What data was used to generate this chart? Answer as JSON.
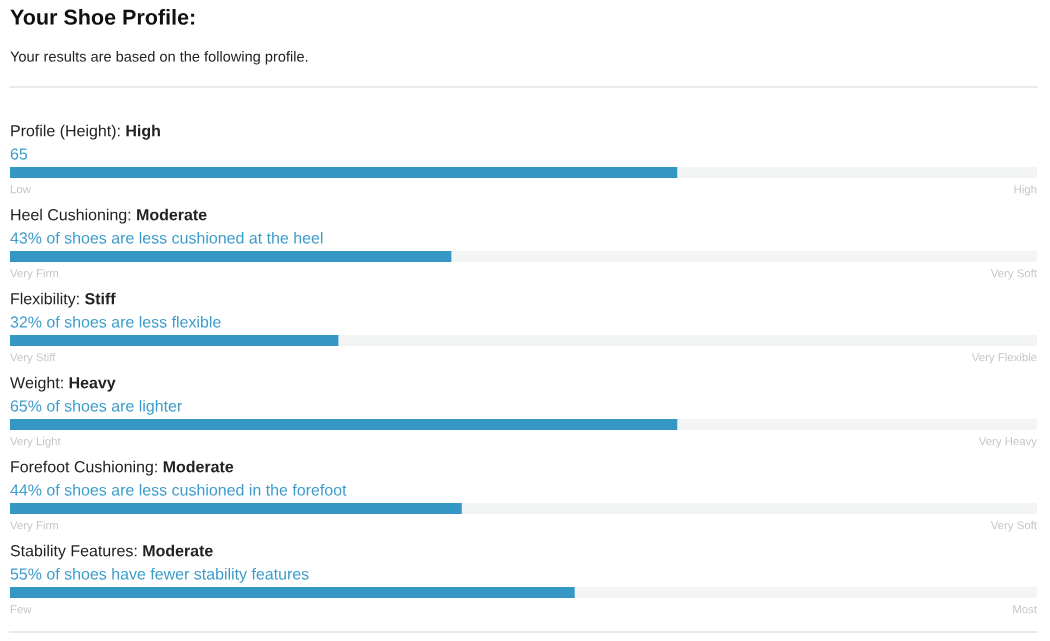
{
  "chart_data": {
    "type": "bar",
    "orientation": "horizontal",
    "stacked": true,
    "title": "Your Shoe Profile:",
    "subtitle": "Your results are based on the following profile.",
    "categories": [
      "Profile (Height): High",
      "Heel Cushioning: Moderate",
      "Flexibility: Stiff",
      "Weight: Heavy",
      "Forefoot Cushioning: Moderate",
      "Stability Features: Moderate"
    ],
    "series": [
      {
        "color": "#3497c5",
        "values": [
          65,
          43,
          32,
          65,
          44,
          55
        ],
        "value_labels": [
          "65",
          "43% of shoes are less cushioned at the heel",
          "32% of shoes are less flexible",
          "65% of shoes are lighter",
          "44% of shoes are less cushioned in the forefoot",
          "55% of shoes have fewer stability features"
        ]
      },
      {
        "color": "#f3f4f4",
        "values": [
          35,
          57,
          68,
          35,
          56,
          45
        ]
      }
    ],
    "xlim": [
      0,
      100
    ],
    "tick_labels": "y",
    "annotations": [
      "Low",
      "High",
      "Very Firm",
      "Very Soft",
      "Very Stiff",
      "Very Flexible",
      "Very Light",
      "Very Heavy",
      "Very Firm",
      "Very Soft",
      "Few",
      "Most"
    ]
  }
}
